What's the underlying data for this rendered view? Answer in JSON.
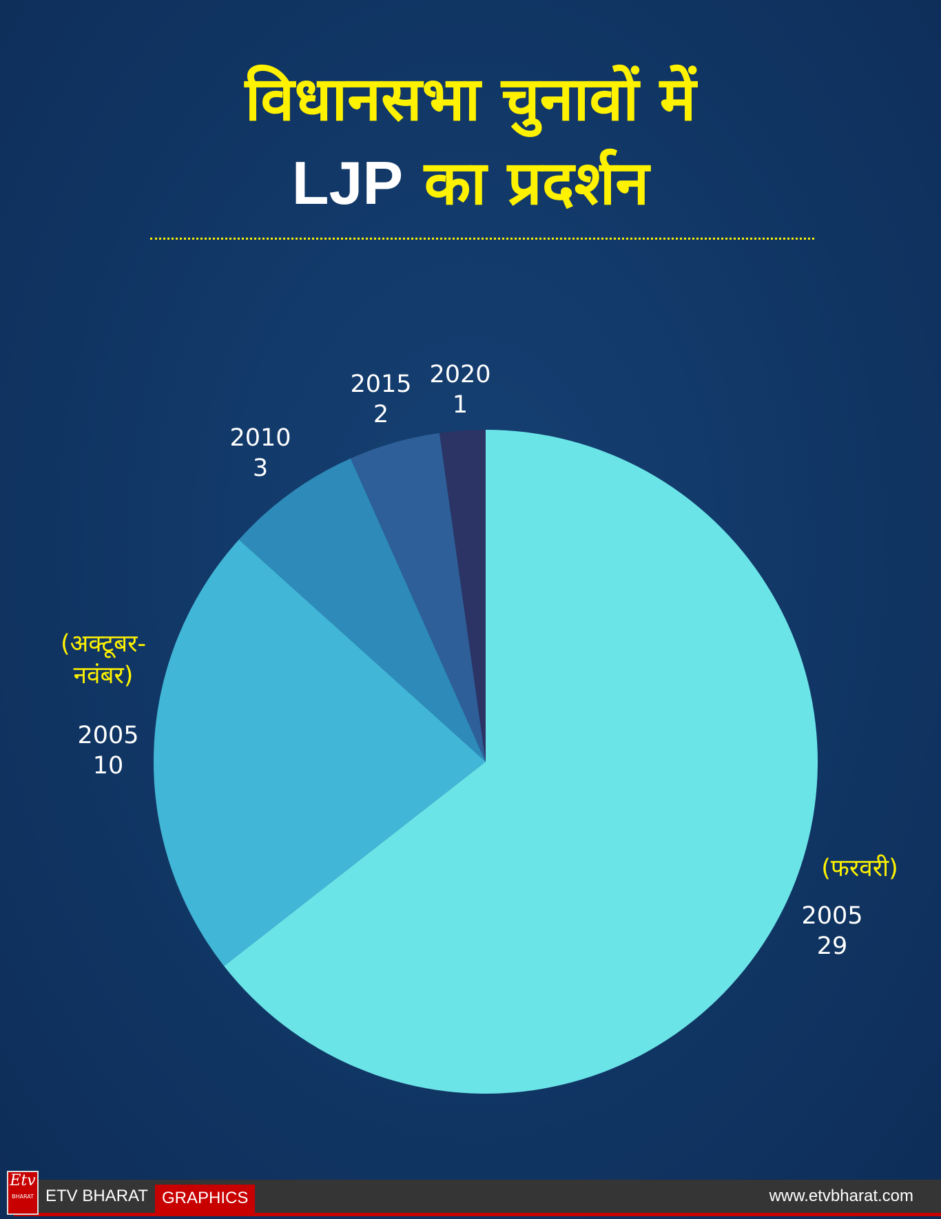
{
  "header": {
    "title_line1": "विधानसभा चुनावों में",
    "title_line2_party": "LJP",
    "title_line2_rest": "का प्रदर्शन"
  },
  "chart_data": {
    "type": "pie",
    "start": "top",
    "direction": "clockwise",
    "slices": [
      {
        "year": "2005",
        "value": 29,
        "note": "(फरवरी)",
        "color": "#6be4e8"
      },
      {
        "year": "2005",
        "value": 10,
        "note": "(अक्टूबर-नवंबर)",
        "note_line1": "(अक्टूबर-",
        "note_line2": "नवंबर)",
        "color": "#41b6d6"
      },
      {
        "year": "2010",
        "value": 3,
        "color": "#2d8ab9"
      },
      {
        "year": "2015",
        "value": 2,
        "color": "#2e5f98"
      },
      {
        "year": "2020",
        "value": 1,
        "color": "#2c3466"
      }
    ]
  },
  "footer": {
    "logo_text": "Etv",
    "logo_sub": "BHARAT",
    "brand": "ETV BHARAT",
    "tag": "GRAPHICS",
    "url": "www.etvbharat.com"
  }
}
